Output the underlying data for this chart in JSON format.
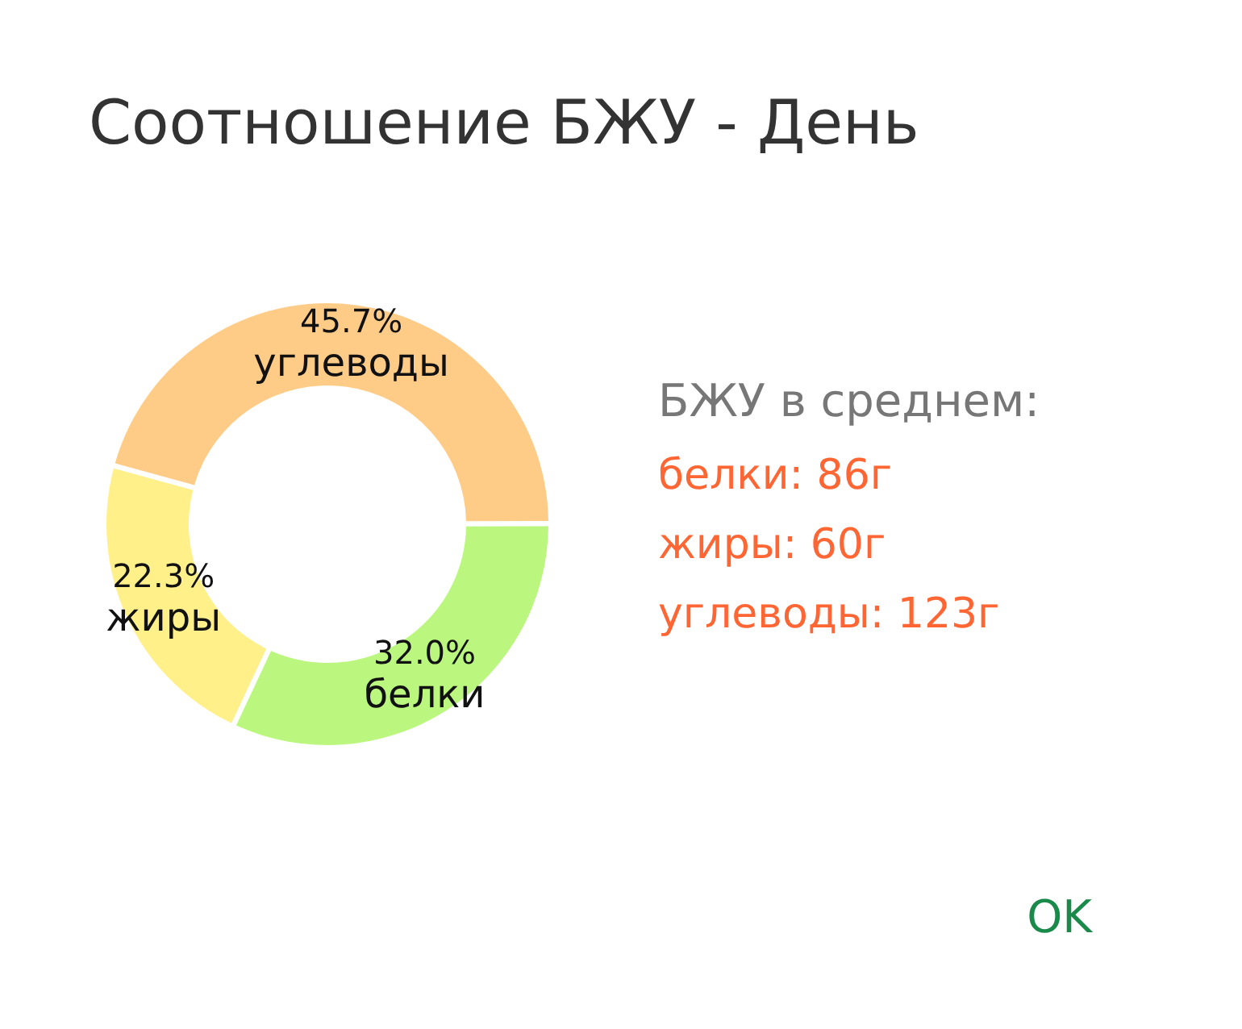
{
  "chart_data": {
    "type": "donut",
    "title": "Соотношение БЖУ - День",
    "categories": [
      "углеводы",
      "белки",
      "жиры"
    ],
    "values": [
      45.7,
      32.0,
      22.3
    ],
    "colors": [
      "#ffcc88",
      "#bbf77e",
      "#fff08a"
    ],
    "value_labels": [
      "45.7%",
      "32.0%",
      "22.3%"
    ],
    "annotations": [
      "БЖУ в среднем:",
      "белки: 86г",
      "жиры: 60г",
      "углеводы: 123г",
      "OK"
    ]
  }
}
